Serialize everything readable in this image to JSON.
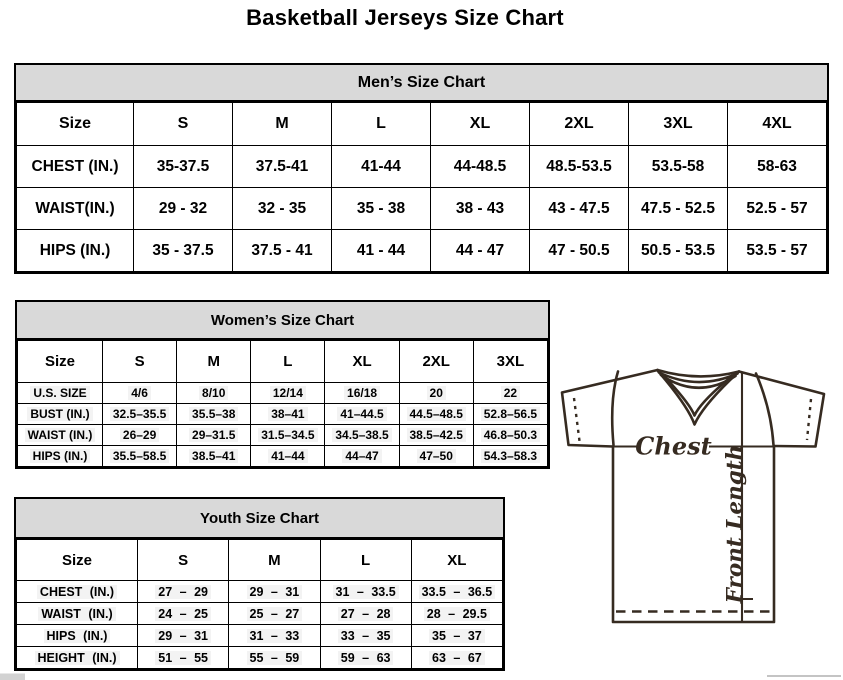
{
  "page": {
    "title": "Basketball Jerseys Size Chart"
  },
  "tables": {
    "mens": {
      "title": "Men’s Size Chart",
      "columns": [
        "Size",
        "S",
        "M",
        "L",
        "XL",
        "2XL",
        "3XL",
        "4XL"
      ],
      "rows": [
        [
          "CHEST (IN.)",
          "35-37.5",
          "37.5-41",
          "41-44",
          "44-48.5",
          "48.5-53.5",
          "53.5-58",
          "58-63"
        ],
        [
          "WAIST(IN.)",
          "29 - 32",
          "32 - 35",
          "35 - 38",
          "38 - 43",
          "43 - 47.5",
          "47.5 - 52.5",
          "52.5 - 57"
        ],
        [
          "HIPS (IN.)",
          "35 - 37.5",
          "37.5 - 41",
          "41 - 44",
          "44 - 47",
          "47 - 50.5",
          "50.5 - 53.5",
          "53.5 - 57"
        ]
      ]
    },
    "womens": {
      "title": "Women’s Size Chart",
      "columns": [
        "Size",
        "S",
        "M",
        "L",
        "XL",
        "2XL",
        "3XL"
      ],
      "rows": [
        [
          "U.S. SIZE",
          "4/6",
          "8/10",
          "12/14",
          "16/18",
          "20",
          "22"
        ],
        [
          "BUST (IN.)",
          "32.5–35.5",
          "35.5–38",
          "38–41",
          "41–44.5",
          "44.5–48.5",
          "52.8–56.5"
        ],
        [
          "WAIST (IN.)",
          "26–29",
          "29–31.5",
          "31.5–34.5",
          "34.5–38.5",
          "38.5–42.5",
          "46.8–50.3"
        ],
        [
          "HIPS (IN.)",
          "35.5–58.5",
          "38.5–41",
          "41–44",
          "44–47",
          "47–50",
          "54.3–58.3"
        ]
      ]
    },
    "youth": {
      "title": "Youth Size Chart",
      "columns": [
        "Size",
        "S",
        "M",
        "L",
        "XL"
      ],
      "rows": [
        [
          "CHEST (IN.)",
          "27 – 29",
          "29 – 31",
          "31 – 33.5",
          "33.5 – 36.5"
        ],
        [
          "WAIST (IN.)",
          "24 – 25",
          "25 – 27",
          "27 – 28",
          "28 – 29.5"
        ],
        [
          "HIPS (IN.)",
          "29 – 31",
          "31 – 33",
          "33 – 35",
          "35 – 37"
        ],
        [
          "HEIGHT (IN.)",
          "51 – 55",
          "55 – 59",
          "59 – 63",
          "63 – 67"
        ]
      ]
    }
  },
  "diagram": {
    "chest_label": "Chest",
    "front_length_label": "Front Length"
  },
  "colors": {
    "header_bg": "#d9d9d9",
    "table_border": "#000000",
    "jersey_outline": "#362b21"
  }
}
